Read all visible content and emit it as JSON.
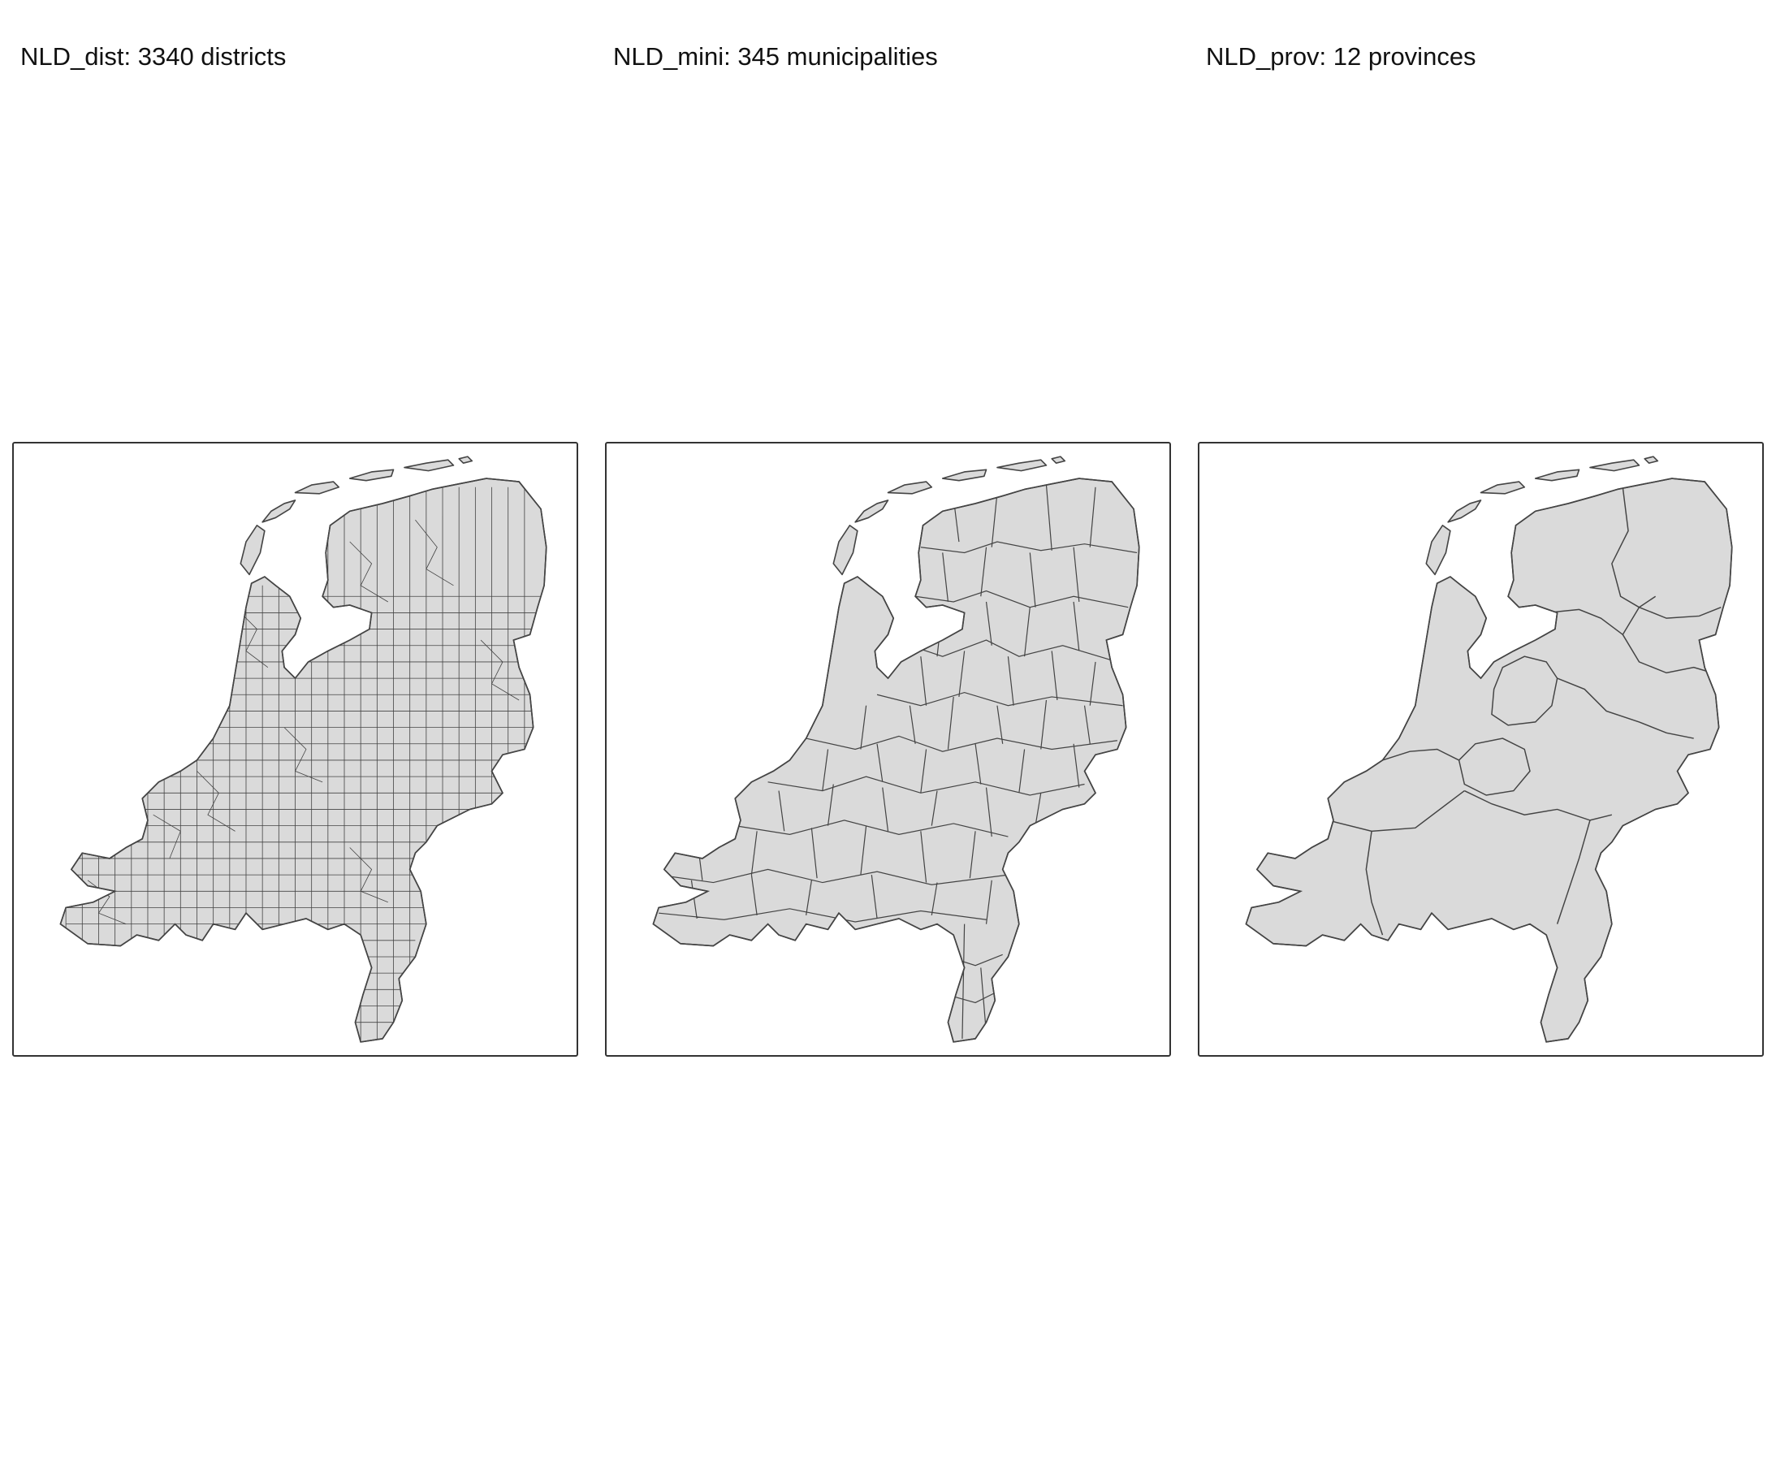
{
  "panels": [
    {
      "title": "NLD_dist: 3340 districts"
    },
    {
      "title": "NLD_mini: 345 municipalities"
    },
    {
      "title": "NLD_prov: 12 provinces"
    }
  ],
  "colors": {
    "land_fill": "#dadada",
    "border": "#444444",
    "frame": "#333333"
  }
}
